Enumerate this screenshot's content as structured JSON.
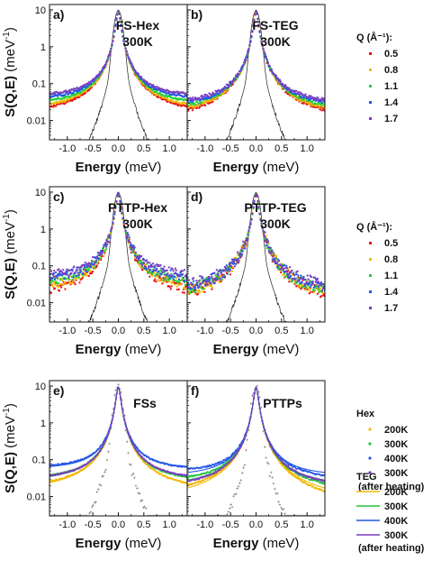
{
  "chart_data": {
    "type": "scatter",
    "y_axis_label_main": "S(Q,E)",
    "y_axis_label_unit": "(meV",
    "y_axis_label_exp": "-1",
    "y_axis_label_close": ")",
    "x_axis_label_main": "Energy",
    "x_axis_label_unit": "(meV)",
    "x_ticks": [
      "-1.0",
      "-0.5",
      "0.0",
      "0.5",
      "1.0"
    ],
    "x_tick_values": [
      -1.0,
      -0.5,
      0.0,
      0.5,
      1.0
    ],
    "xlim": [
      -1.35,
      1.35
    ],
    "y_ticks": [
      "10",
      "1",
      "0.1",
      "0.01"
    ],
    "y_tick_values": [
      10,
      1,
      0.1,
      0.01
    ],
    "ylim": [
      0.003,
      14
    ],
    "y_scale": "log",
    "panels": [
      {
        "letter": "a)",
        "annotation": [
          "FS-Hex",
          "300K"
        ],
        "style": "q",
        "tails": [
          0.013,
          0.017,
          0.024,
          0.033,
          0.042
        ],
        "noise": 0.06,
        "resolution": true
      },
      {
        "letter": "b)",
        "annotation": [
          "FS-TEG",
          "300K"
        ],
        "style": "q",
        "tails": [
          0.009,
          0.012,
          0.016,
          0.021,
          0.026
        ],
        "noise": 0.1,
        "resolution": true
      },
      {
        "letter": "c)",
        "annotation": [
          "PTTP-Hex",
          "300K"
        ],
        "style": "q",
        "tails": [
          0.013,
          0.02,
          0.028,
          0.038,
          0.048
        ],
        "noise": 0.28,
        "resolution": true
      },
      {
        "letter": "d)",
        "annotation": [
          "PTTP-TEG",
          "300K"
        ],
        "style": "q",
        "tails": [
          0.008,
          0.011,
          0.014,
          0.018,
          0.022
        ],
        "noise": 0.35,
        "resolution": true
      },
      {
        "letter": "e)",
        "annotation": [
          "FSs"
        ],
        "style": "temp",
        "tails": [
          0.014,
          0.025,
          0.055,
          0.026
        ],
        "noise": 0.04,
        "resolution": true
      },
      {
        "letter": "f)",
        "annotation": [
          "PTTPs"
        ],
        "style": "temp",
        "tails": [
          0.007,
          0.018,
          0.035,
          0.016
        ],
        "noise": 0.05,
        "resolution": true
      }
    ],
    "legend_q": {
      "title": "Q (Å⁻¹):",
      "items": [
        {
          "label": "0.5",
          "color": "#e8141b"
        },
        {
          "label": "0.8",
          "color": "#f2b800"
        },
        {
          "label": "1.1",
          "color": "#22d33a"
        },
        {
          "label": "1.4",
          "color": "#2357e6"
        },
        {
          "label": "1.7",
          "color": "#7a3fc2"
        }
      ]
    },
    "legend_hex": {
      "title": "Hex",
      "items": [
        {
          "label": "200K",
          "color": "#f2b800"
        },
        {
          "label": "300K",
          "color": "#22c33a"
        },
        {
          "label": "400K",
          "color": "#2357e6"
        },
        {
          "label": "300K",
          "color": "#7a3fc2",
          "note": "(after heating)"
        }
      ]
    },
    "legend_teg": {
      "title": "TEG",
      "items": [
        {
          "label": "200K",
          "color": "#f2b800"
        },
        {
          "label": "300K",
          "color": "#22c33a"
        },
        {
          "label": "400K",
          "color": "#2357e6"
        },
        {
          "label": "300K",
          "color": "#7a3fc2",
          "note": "(after heating)"
        }
      ]
    },
    "resolution_color": "#222222"
  }
}
